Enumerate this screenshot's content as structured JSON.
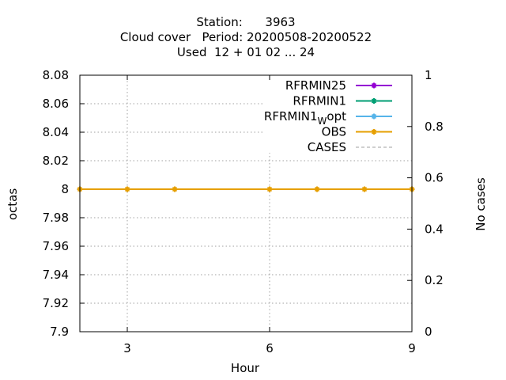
{
  "chart_data": {
    "type": "line",
    "title_lines": [
      "Station:      3963",
      "Cloud cover   Period: 20200508-20200522",
      "Used  12 + 01 02 ... 24"
    ],
    "xlabel": "Hour",
    "ylabel": "octas",
    "y2label": "No cases",
    "xlim": [
      2,
      9
    ],
    "ylim": [
      7.9,
      8.08
    ],
    "y2lim": [
      0,
      1
    ],
    "xticks": [
      3,
      6,
      9
    ],
    "yticks": [
      7.9,
      7.92,
      7.94,
      7.96,
      7.98,
      8,
      8.02,
      8.04,
      8.06,
      8.08
    ],
    "y2ticks": [
      0,
      0.2,
      0.4,
      0.6,
      0.8,
      1
    ],
    "grid": true,
    "legend_position": "top-right",
    "series": [
      {
        "name": "RFRMIN25",
        "color": "#9400d3",
        "style": "line-points",
        "x": [],
        "y": []
      },
      {
        "name": "RFRMIN1",
        "color": "#009e73",
        "style": "line-points",
        "x": [],
        "y": []
      },
      {
        "name": "RFRMIN1_W opt",
        "label_main": "RFRMIN1",
        "label_sub": "W",
        "label_rest": "opt",
        "color": "#56b4e9",
        "style": "line-points",
        "x": [],
        "y": []
      },
      {
        "name": "OBS",
        "color": "#e69f00",
        "style": "line-points",
        "x": [
          2,
          3,
          4,
          6,
          7,
          8,
          9
        ],
        "y": [
          8,
          8,
          8,
          8,
          8,
          8,
          8
        ]
      },
      {
        "name": "CASES",
        "color": "#a0a0a0",
        "style": "dashed",
        "axis": "y2",
        "x": [
          2,
          9
        ],
        "y": [
          1,
          1
        ]
      }
    ]
  }
}
